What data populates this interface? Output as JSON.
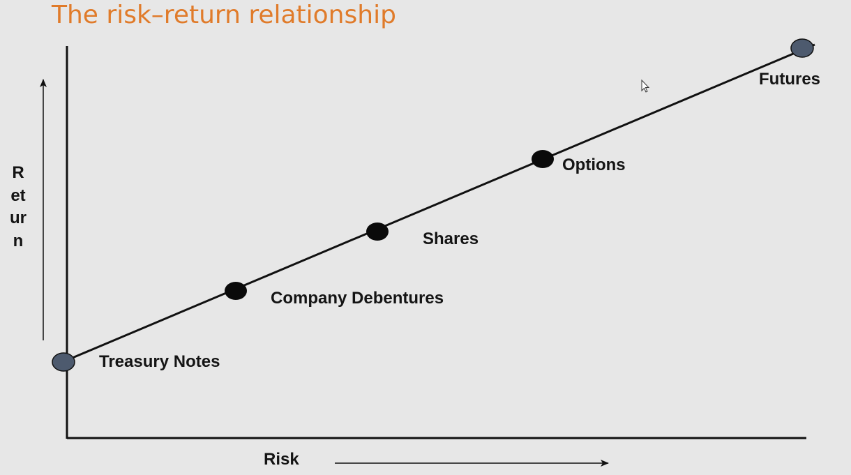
{
  "title": "The risk–return relationship",
  "axes": {
    "x_label": "Risk",
    "y_label": "Return"
  },
  "points": [
    {
      "label": "Treasury Notes",
      "style": "slate"
    },
    {
      "label": "Company Debentures",
      "style": "black"
    },
    {
      "label": "Shares",
      "style": "black"
    },
    {
      "label": "Options",
      "style": "black"
    },
    {
      "label": "Futures",
      "style": "slate"
    }
  ],
  "colors": {
    "title": "#e07b2a",
    "background": "#e7e7e7",
    "line": "#111111",
    "marker_black": "#0a0a0a",
    "marker_slate": "#4d5a6e"
  }
}
